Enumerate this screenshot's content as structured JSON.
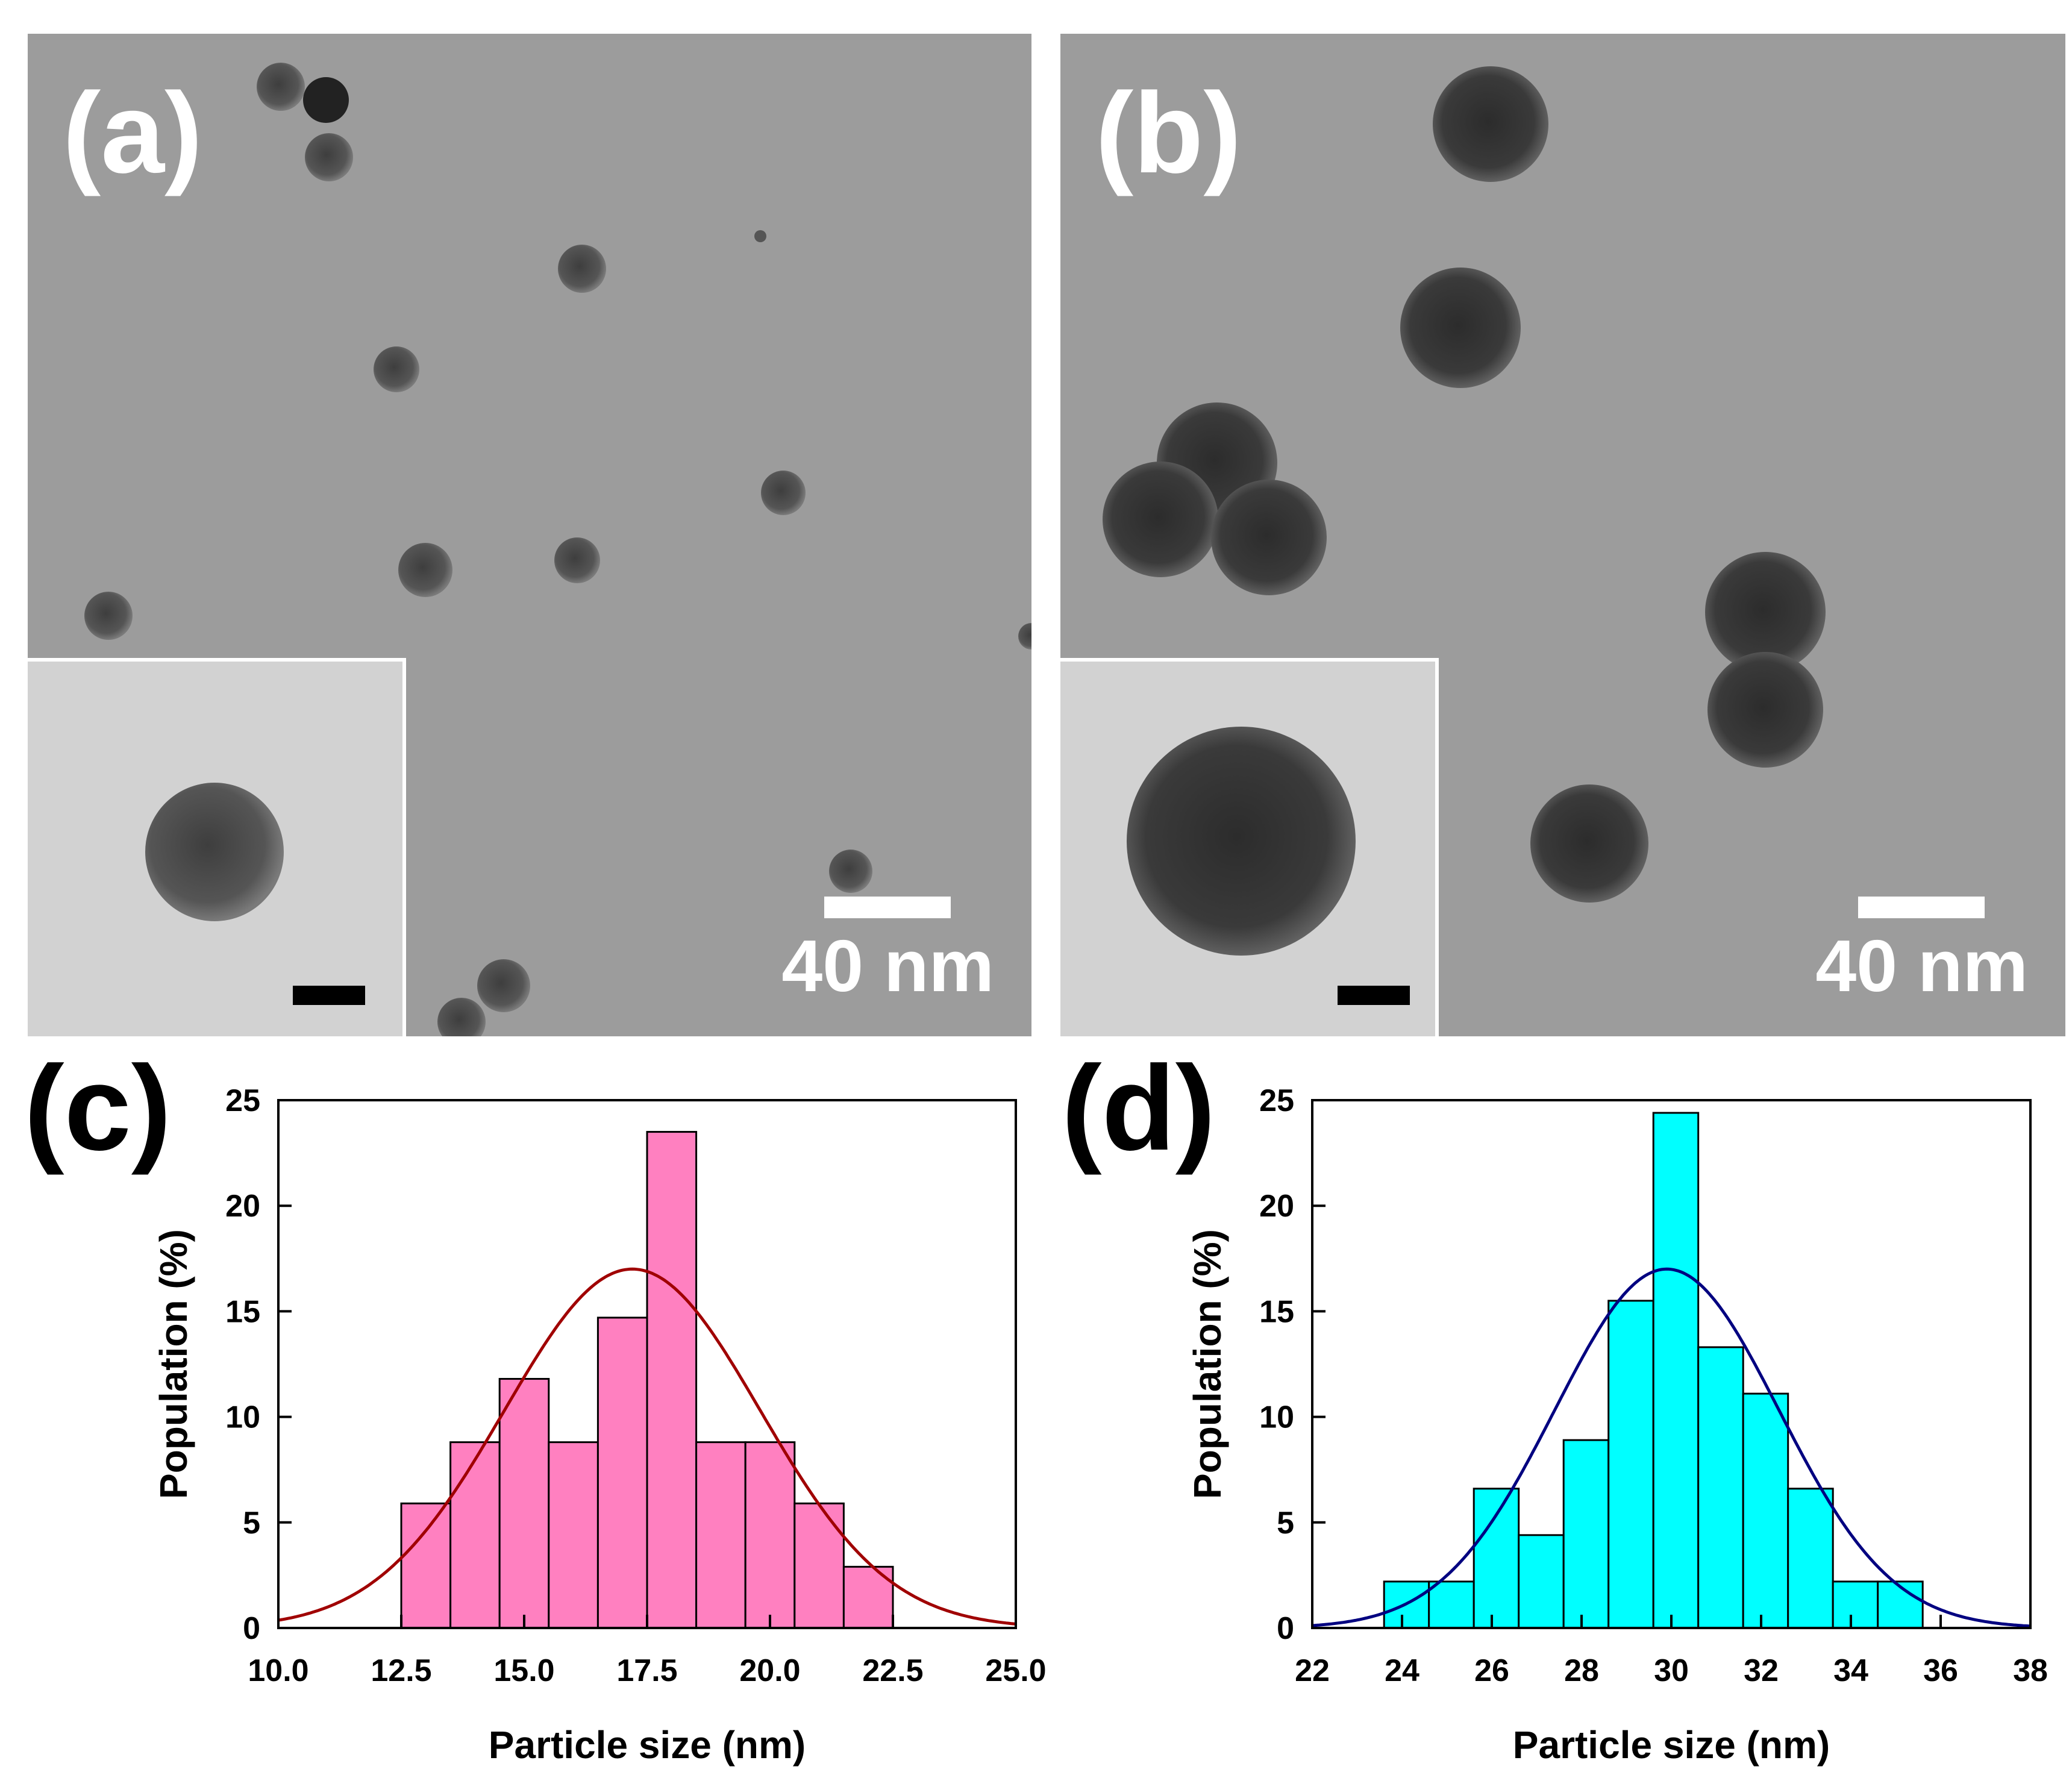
{
  "panels": {
    "a": {
      "label": "(a)",
      "scale_label": "40 nm"
    },
    "b": {
      "label": "(b)",
      "scale_label": "40 nm"
    },
    "c": {
      "label": "(c)"
    },
    "d": {
      "label": "(d)"
    }
  },
  "chart_data": [
    {
      "panel": "c",
      "type": "bar",
      "title": "",
      "xlabel": "Particle size (nm)",
      "ylabel": "Population (%)",
      "xlim": [
        10.0,
        25.0
      ],
      "ylim": [
        0,
        25
      ],
      "xticks": [
        "10.0",
        "12.5",
        "15.0",
        "17.5",
        "20.0",
        "22.5",
        "25.0"
      ],
      "xtick_values": [
        10.0,
        12.5,
        15.0,
        17.5,
        20.0,
        22.5,
        25.0
      ],
      "yticks": [
        "0",
        "5",
        "10",
        "15",
        "20",
        "25"
      ],
      "yticks_values": [
        0,
        5,
        10,
        15,
        20,
        25
      ],
      "bin_edges": [
        12.5,
        13.5,
        14.5,
        15.5,
        16.5,
        17.5,
        18.5,
        19.5,
        20.5,
        21.5,
        22.5
      ],
      "values": [
        5.9,
        8.8,
        11.8,
        8.8,
        14.7,
        23.5,
        8.8,
        8.8,
        5.9,
        2.9
      ],
      "bar_color": "#ff80c0",
      "fit": {
        "type": "gaussian",
        "mean": 17.2,
        "sigma": 2.6,
        "peak": 17.0,
        "color": "#a00000"
      }
    },
    {
      "panel": "d",
      "type": "bar",
      "title": "",
      "xlabel": "Particle size (nm)",
      "ylabel": "Population (%)",
      "xlim": [
        22,
        38
      ],
      "ylim": [
        0,
        25
      ],
      "xticks": [
        "22",
        "24",
        "26",
        "28",
        "30",
        "32",
        "34",
        "36",
        "38"
      ],
      "xtick_values": [
        22,
        24,
        26,
        28,
        30,
        32,
        34,
        36,
        38
      ],
      "yticks": [
        "0",
        "5",
        "10",
        "15",
        "20",
        "25"
      ],
      "yticks_values": [
        0,
        5,
        10,
        15,
        20,
        25
      ],
      "bin_edges": [
        23.6,
        24.6,
        25.6,
        26.6,
        27.6,
        28.6,
        29.6,
        30.6,
        31.6,
        32.6,
        33.6,
        34.6,
        35.6
      ],
      "values": [
        2.2,
        2.2,
        6.6,
        4.4,
        8.9,
        15.5,
        24.4,
        13.3,
        11.1,
        6.6,
        2.2,
        2.2
      ],
      "bar_color": "#00ffff",
      "fit": {
        "type": "gaussian",
        "mean": 29.9,
        "sigma": 2.5,
        "peak": 17.0,
        "color": "#000080"
      }
    }
  ]
}
